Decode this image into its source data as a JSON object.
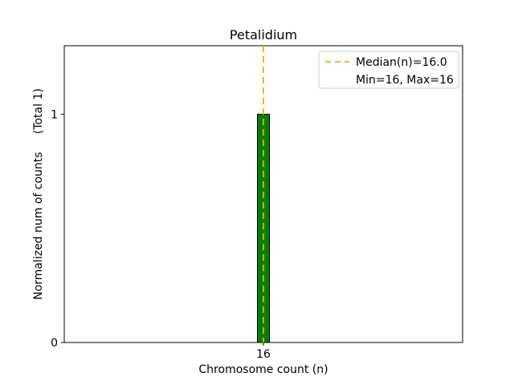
{
  "chart_data": {
    "type": "bar",
    "title": "Petalidium",
    "xlabel": "Chromosome count (n)",
    "ylabel": "Normalized num of counts     (Total 1)",
    "categories": [
      16
    ],
    "values": [
      1
    ],
    "median": 16,
    "min": 16,
    "max": 16,
    "xticks": [
      16
    ],
    "yticks": [
      0,
      1
    ],
    "ylim": [
      0,
      1.3
    ],
    "grid": false,
    "legend_position": "upper right",
    "legend": [
      "Median(n)=16.0",
      "Min=16, Max=16"
    ],
    "colors": {
      "bar_fill": "#008000",
      "bar_edge": "#000000",
      "median_line": "#ffa500",
      "legend_border": "#cccccc",
      "spine": "#000000"
    }
  }
}
